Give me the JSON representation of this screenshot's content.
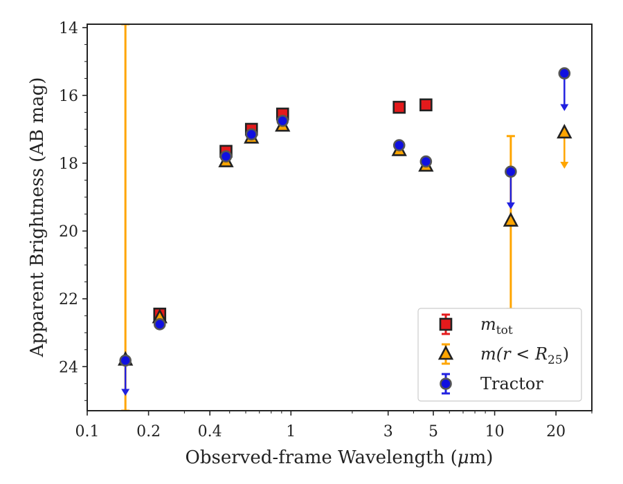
{
  "chart_data": {
    "type": "scatter",
    "xlabel_pre": "Observed-frame Wavelength (",
    "xlabel_mu": "μ",
    "xlabel_post": "m)",
    "ylabel": "Apparent Brightness (AB mag)",
    "xscale": "log",
    "xlim": [
      0.1,
      30
    ],
    "ylim": [
      25.3,
      13.9
    ],
    "xticks": [
      {
        "value": 0.1,
        "label": "0.1"
      },
      {
        "value": 0.2,
        "label": "0.2"
      },
      {
        "value": 0.4,
        "label": "0.4"
      },
      {
        "value": 1,
        "label": "1"
      },
      {
        "value": 3,
        "label": "3"
      },
      {
        "value": 5,
        "label": "5"
      },
      {
        "value": 10,
        "label": "10"
      },
      {
        "value": 20,
        "label": "20"
      }
    ],
    "yticks": [
      {
        "value": 14,
        "label": "14"
      },
      {
        "value": 16,
        "label": "16"
      },
      {
        "value": 18,
        "label": "18"
      },
      {
        "value": 20,
        "label": "20"
      },
      {
        "value": 22,
        "label": "22"
      },
      {
        "value": 24,
        "label": "24"
      }
    ],
    "grid": false,
    "legend_position": "lower-right",
    "series": [
      {
        "key": "mtot",
        "name_base": "m",
        "name_sub": "tot",
        "marker": "square",
        "fill": "#e41a1c",
        "edge": "#222222",
        "err_color": "#e41a1c",
        "points": [
          {
            "x": 0.227,
            "y": 22.45
          },
          {
            "x": 0.48,
            "y": 17.65
          },
          {
            "x": 0.64,
            "y": 17.0
          },
          {
            "x": 0.91,
            "y": 16.55
          },
          {
            "x": 3.4,
            "y": 16.35
          },
          {
            "x": 4.6,
            "y": 16.28
          }
        ]
      },
      {
        "key": "mr25",
        "name_base": "m",
        "name_rest": "(r < R",
        "name_sub": "25",
        "name_close": ")",
        "marker": "triangle",
        "fill": "#ffa500",
        "edge": "#222222",
        "err_color": "#ffa500",
        "points": [
          {
            "x": 0.154,
            "y": 23.8,
            "err_low": 13.9,
            "err_high": 25.3
          },
          {
            "x": 0.227,
            "y": 22.55
          },
          {
            "x": 0.48,
            "y": 17.95
          },
          {
            "x": 0.64,
            "y": 17.25
          },
          {
            "x": 0.91,
            "y": 16.9
          },
          {
            "x": 3.4,
            "y": 17.62
          },
          {
            "x": 4.6,
            "y": 18.08
          },
          {
            "x": 12,
            "y": 19.7,
            "err_low": 17.2,
            "err_high": 22.3
          },
          {
            "x": 22,
            "y": 17.1,
            "upper_limit_to": 18.1
          }
        ]
      },
      {
        "key": "tractor",
        "name": "Tractor",
        "marker": "circle",
        "fill": "#1010e0",
        "edge": "#555555",
        "err_color": "#2020e0",
        "points": [
          {
            "x": 0.154,
            "y": 23.82,
            "upper_limit_to": 24.8
          },
          {
            "x": 0.227,
            "y": 22.75
          },
          {
            "x": 0.48,
            "y": 17.8
          },
          {
            "x": 0.64,
            "y": 17.15
          },
          {
            "x": 0.91,
            "y": 16.75
          },
          {
            "x": 3.4,
            "y": 17.47
          },
          {
            "x": 4.6,
            "y": 17.95
          },
          {
            "x": 12,
            "y": 18.25,
            "upper_limit_to": 19.3
          },
          {
            "x": 22,
            "y": 15.35,
            "upper_limit_to": 16.4
          }
        ]
      }
    ]
  }
}
